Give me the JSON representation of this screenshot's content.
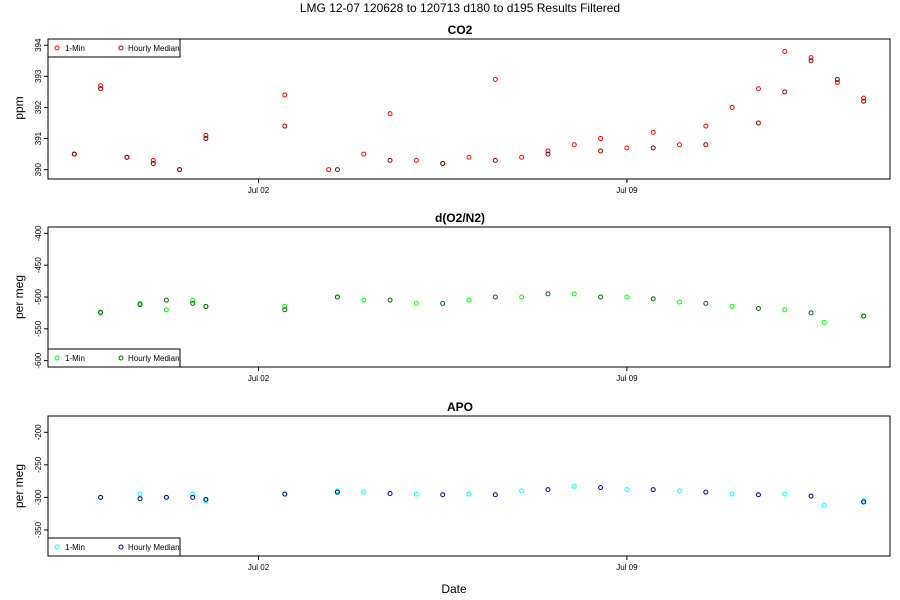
{
  "page_title": "LMG   12-07    120628 to 120713    d180 to d195   Results Filtered",
  "x_axis_label": "Date",
  "colors": {
    "co2_minute": "#ff0000",
    "co2_hourly": "#8b0000",
    "o2_minute": "#00ff00",
    "o2_hourly": "#006400",
    "apo_minute": "#00ffff",
    "apo_hourly": "#00008b"
  },
  "chart_data": [
    {
      "type": "scatter",
      "title": "CO2",
      "ylabel": "ppm",
      "x_type": "date",
      "x_range": [
        "2012-06-28",
        "2012-07-14"
      ],
      "ylim": [
        389.7,
        394.2
      ],
      "yticks": [
        390,
        391,
        392,
        393,
        394
      ],
      "xticks": [
        {
          "date": "2012-07-02",
          "label": "Jul 02"
        },
        {
          "date": "2012-07-09",
          "label": "Jul 09"
        }
      ],
      "legend": {
        "placement": "top-left",
        "entries": [
          "1-Min",
          "Hourly Median"
        ]
      },
      "series": [
        {
          "name": "1-Min",
          "x": [
            "2012-06-28 12:00",
            "2012-06-29 00:00",
            "2012-06-29 12:00",
            "2012-06-30 00:00",
            "2012-06-30 12:00",
            "2012-07-01 00:00",
            "2012-07-02 12:00",
            "2012-07-03 08:00",
            "2012-07-04 00:00",
            "2012-07-04 12:00",
            "2012-07-05 00:00",
            "2012-07-05 12:00",
            "2012-07-06 00:00",
            "2012-07-06 12:00",
            "2012-07-07 00:00",
            "2012-07-07 12:00",
            "2012-07-08 00:00",
            "2012-07-08 12:00",
            "2012-07-09 00:00",
            "2012-07-09 12:00",
            "2012-07-10 00:00",
            "2012-07-10 12:00",
            "2012-07-11 00:00",
            "2012-07-11 12:00",
            "2012-07-12 00:00",
            "2012-07-12 12:00",
            "2012-07-13 00:00",
            "2012-07-13 12:00"
          ],
          "y": [
            390.5,
            392.7,
            390.4,
            390.3,
            390.0,
            391.1,
            392.4,
            390.0,
            390.5,
            391.8,
            390.3,
            390.2,
            390.4,
            392.9,
            390.4,
            390.6,
            390.8,
            391.0,
            390.7,
            391.2,
            390.8,
            391.4,
            392.0,
            392.6,
            393.8,
            393.6,
            392.8,
            392.3
          ]
        },
        {
          "name": "Hourly Median",
          "x": [
            "2012-06-28 12:00",
            "2012-06-29 00:00",
            "2012-06-29 12:00",
            "2012-06-30 00:00",
            "2012-06-30 12:00",
            "2012-07-01 00:00",
            "2012-07-02 12:00",
            "2012-07-03 12:00",
            "2012-07-04 12:00",
            "2012-07-05 12:00",
            "2012-07-06 12:00",
            "2012-07-07 12:00",
            "2012-07-08 12:00",
            "2012-07-09 12:00",
            "2012-07-10 12:00",
            "2012-07-11 12:00",
            "2012-07-12 00:00",
            "2012-07-12 12:00",
            "2012-07-13 00:00",
            "2012-07-13 12:00"
          ],
          "y": [
            390.5,
            392.6,
            390.4,
            390.2,
            390.0,
            391.0,
            391.4,
            390.0,
            390.3,
            390.2,
            390.3,
            390.5,
            390.6,
            390.7,
            390.8,
            391.5,
            392.5,
            393.5,
            392.9,
            392.2
          ]
        }
      ]
    },
    {
      "type": "scatter",
      "title": "d(O2/N2)",
      "ylabel": "per meg",
      "x_type": "date",
      "x_range": [
        "2012-06-28",
        "2012-07-14"
      ],
      "ylim": [
        -610,
        -390
      ],
      "yticks": [
        -600,
        -550,
        -500,
        -450,
        -400
      ],
      "xticks": [
        {
          "date": "2012-07-02",
          "label": "Jul 02"
        },
        {
          "date": "2012-07-09",
          "label": "Jul 09"
        }
      ],
      "legend": {
        "placement": "bottom-left",
        "entries": [
          "1-Min",
          "Hourly Median"
        ]
      },
      "series": [
        {
          "name": "1-Min",
          "x": [
            "2012-06-29 00:00",
            "2012-06-29 18:00",
            "2012-06-30 06:00",
            "2012-06-30 18:00",
            "2012-07-01 00:00",
            "2012-07-02 12:00",
            "2012-07-03 12:00",
            "2012-07-04 00:00",
            "2012-07-05 00:00",
            "2012-07-06 00:00",
            "2012-07-07 00:00",
            "2012-07-08 00:00",
            "2012-07-09 00:00",
            "2012-07-10 00:00",
            "2012-07-11 00:00",
            "2012-07-12 00:00",
            "2012-07-12 18:00",
            "2012-07-13 12:00"
          ],
          "y": [
            -525,
            -510,
            -520,
            -505,
            -515,
            -515,
            -500,
            -505,
            -510,
            -505,
            -500,
            -495,
            -500,
            -508,
            -515,
            -520,
            -540,
            -530
          ]
        },
        {
          "name": "Hourly Median",
          "x": [
            "2012-06-29 00:00",
            "2012-06-29 18:00",
            "2012-06-30 06:00",
            "2012-06-30 18:00",
            "2012-07-01 00:00",
            "2012-07-02 12:00",
            "2012-07-03 12:00",
            "2012-07-04 12:00",
            "2012-07-05 12:00",
            "2012-07-06 12:00",
            "2012-07-07 12:00",
            "2012-07-08 12:00",
            "2012-07-09 12:00",
            "2012-07-10 12:00",
            "2012-07-11 12:00",
            "2012-07-12 12:00",
            "2012-07-13 12:00"
          ],
          "y": [
            -524,
            -512,
            -505,
            -510,
            -515,
            -520,
            -500,
            -505,
            -510,
            -500,
            -495,
            -500,
            -503,
            -510,
            -518,
            -525,
            -530
          ]
        }
      ]
    },
    {
      "type": "scatter",
      "title": "APO",
      "ylabel": "per meg",
      "x_type": "date",
      "x_range": [
        "2012-06-28",
        "2012-07-14"
      ],
      "ylim": [
        -390,
        -175
      ],
      "yticks": [
        -350,
        -300,
        -250,
        -200
      ],
      "xticks": [
        {
          "date": "2012-07-02",
          "label": "Jul 02"
        },
        {
          "date": "2012-07-09",
          "label": "Jul 09"
        }
      ],
      "legend": {
        "placement": "bottom-left",
        "entries": [
          "1-Min",
          "Hourly Median"
        ]
      },
      "series": [
        {
          "name": "1-Min",
          "x": [
            "2012-06-29 00:00",
            "2012-06-29 18:00",
            "2012-06-30 06:00",
            "2012-06-30 18:00",
            "2012-07-01 00:00",
            "2012-07-02 12:00",
            "2012-07-03 12:00",
            "2012-07-04 00:00",
            "2012-07-05 00:00",
            "2012-07-06 00:00",
            "2012-07-07 00:00",
            "2012-07-08 00:00",
            "2012-07-09 00:00",
            "2012-07-10 00:00",
            "2012-07-11 00:00",
            "2012-07-12 00:00",
            "2012-07-12 18:00",
            "2012-07-13 12:00"
          ],
          "y": [
            -300,
            -295,
            -300,
            -295,
            -305,
            -295,
            -290,
            -292,
            -295,
            -295,
            -290,
            -283,
            -288,
            -290,
            -295,
            -295,
            -312,
            -305
          ]
        },
        {
          "name": "Hourly Median",
          "x": [
            "2012-06-29 00:00",
            "2012-06-29 18:00",
            "2012-06-30 06:00",
            "2012-06-30 18:00",
            "2012-07-01 00:00",
            "2012-07-02 12:00",
            "2012-07-03 12:00",
            "2012-07-04 12:00",
            "2012-07-05 12:00",
            "2012-07-06 12:00",
            "2012-07-07 12:00",
            "2012-07-08 12:00",
            "2012-07-09 12:00",
            "2012-07-10 12:00",
            "2012-07-11 12:00",
            "2012-07-12 12:00",
            "2012-07-13 12:00"
          ],
          "y": [
            -300,
            -302,
            -300,
            -300,
            -303,
            -295,
            -292,
            -294,
            -296,
            -296,
            -288,
            -285,
            -288,
            -292,
            -296,
            -298,
            -307
          ]
        }
      ]
    }
  ]
}
